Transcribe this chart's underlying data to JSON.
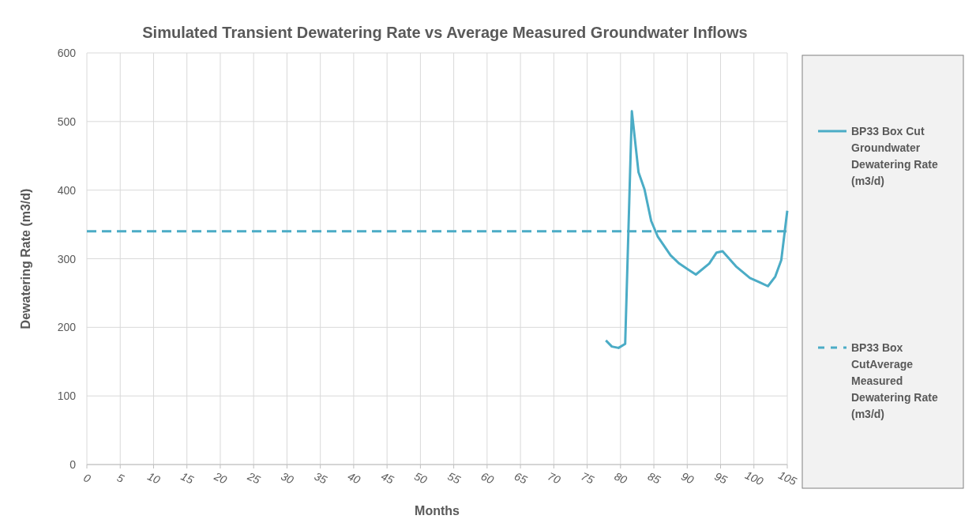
{
  "chart_data": {
    "type": "line",
    "title": "Simulated Transient Dewatering Rate vs Average Measured Groundwater Inflows",
    "xlabel": "Months",
    "ylabel": "Dewatering Rate (m3/d)",
    "xlim": [
      0,
      105
    ],
    "xticks": [
      0,
      5,
      10,
      15,
      20,
      25,
      30,
      35,
      40,
      45,
      50,
      55,
      60,
      65,
      70,
      75,
      80,
      85,
      90,
      95,
      100,
      105
    ],
    "ylim": [
      0,
      600
    ],
    "yticks": [
      0,
      100,
      200,
      300,
      400,
      500,
      600
    ],
    "grid": true,
    "legend": "right",
    "marker": "none",
    "series": [
      {
        "name": "BP33 Box Cut Groundwater Dewatering Rate (m3/d)",
        "color": "#4bacc6",
        "line_style": "solid",
        "x": [
          77.8,
          78.7,
          79.7,
          80.7,
          81.7,
          82.7,
          83.6,
          84.6,
          85.6,
          87.5,
          88.8,
          90.2,
          91.3,
          93.3,
          94.4,
          95.3,
          97.3,
          99.4,
          100.8,
          102.1,
          103.2,
          104.1,
          105
        ],
        "values": [
          181,
          172,
          170,
          176,
          515,
          426,
          401,
          355,
          332,
          305,
          293,
          284,
          277,
          293,
          309,
          311,
          289,
          272,
          266,
          260,
          274,
          298,
          370
        ]
      },
      {
        "name": "BP33 Box CutAverage Measured Dewatering Rate (m3/d)",
        "color": "#4bacc6",
        "line_style": "dashed",
        "x": [
          0,
          105
        ],
        "values": [
          340,
          340
        ]
      }
    ]
  }
}
